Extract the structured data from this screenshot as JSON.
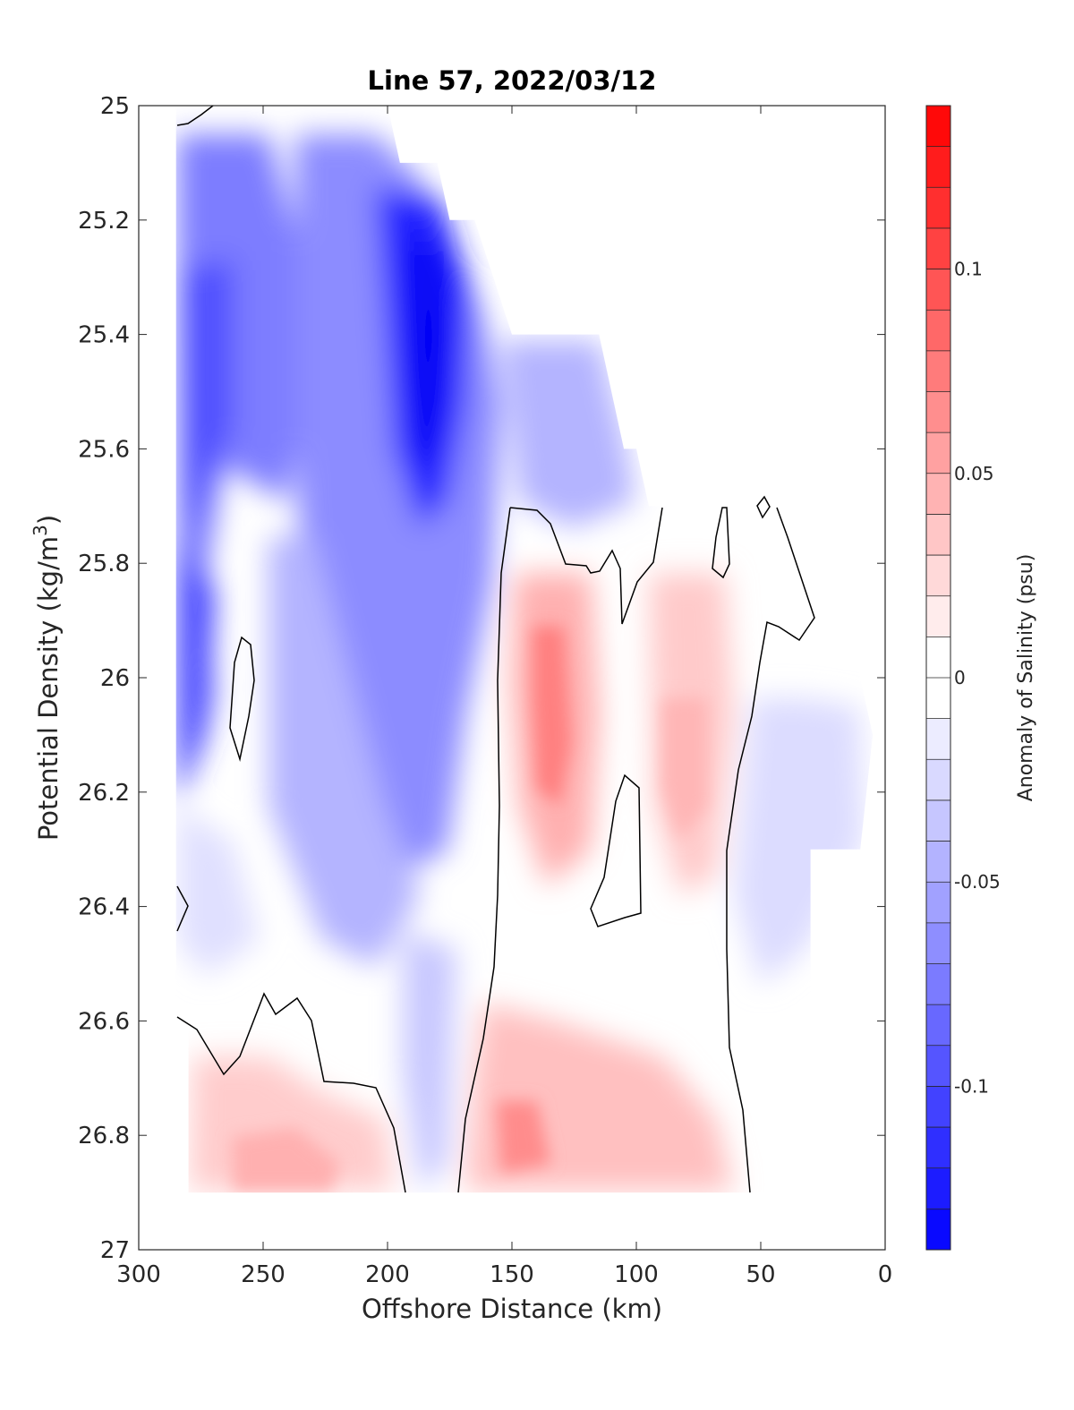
{
  "chart_data": {
    "type": "contour",
    "title": "Line 57, 2022/03/12",
    "xlabel": "Offshore Distance (km)",
    "ylabel_main": "Potential Density (kg/m",
    "ylabel_sup": "3",
    "ylabel_tail": ")",
    "xlim": [
      300,
      0
    ],
    "x_reversed": true,
    "ylim": [
      25,
      27
    ],
    "y_reversed": true,
    "x_ticks": [
      300,
      250,
      200,
      150,
      100,
      50,
      0
    ],
    "x_tick_labels": [
      "300",
      "250",
      "200",
      "150",
      "100",
      "50",
      "0"
    ],
    "y_ticks": [
      25,
      25.2,
      25.4,
      25.6,
      25.8,
      26,
      26.2,
      26.4,
      26.6,
      26.8,
      27
    ],
    "y_tick_labels": [
      "25",
      "25.2",
      "25.4",
      "25.6",
      "25.8",
      "26",
      "26.2",
      "26.4",
      "26.6",
      "26.8",
      "27"
    ],
    "colorbar": {
      "label": "Anomaly of Salinity (psu)",
      "range": [
        -0.14,
        0.14
      ],
      "levels": 28,
      "ticks": [
        0.1,
        0.05,
        0,
        -0.05,
        -0.1
      ],
      "tick_labels": [
        "0.1",
        "0.05",
        "0",
        "-0.05",
        "-0.1"
      ],
      "color_neg": "#0000ff",
      "color_zero": "#ffffff",
      "color_pos": "#ff0000"
    },
    "data_top_boundary": [
      {
        "x": 285,
        "y": 25.0
      },
      {
        "x": 200,
        "y": 25.0
      },
      {
        "x": 195,
        "y": 25.1
      },
      {
        "x": 180,
        "y": 25.1
      },
      {
        "x": 175,
        "y": 25.2
      },
      {
        "x": 165,
        "y": 25.2
      },
      {
        "x": 150,
        "y": 25.4
      },
      {
        "x": 115,
        "y": 25.4
      },
      {
        "x": 105,
        "y": 25.6
      },
      {
        "x": 100,
        "y": 25.6
      },
      {
        "x": 95,
        "y": 25.7
      },
      {
        "x": 30,
        "y": 25.7
      },
      {
        "x": 10,
        "y": 26.0
      },
      {
        "x": 5,
        "y": 26.1
      },
      {
        "x": 10,
        "y": 26.3
      }
    ],
    "features": [
      {
        "name": "fresh core (offshore upper)",
        "x": 185,
        "y": 25.45,
        "value": -0.13
      },
      {
        "name": "fresh core (far offshore)",
        "x": 265,
        "y": 25.55,
        "value": -0.09
      },
      {
        "name": "fresh tongue",
        "x": 220,
        "y": 25.9,
        "value": -0.07
      },
      {
        "name": "salty core (mid)",
        "x": 135,
        "y": 26.1,
        "value": 0.07
      },
      {
        "name": "salty core (deep)",
        "x": 140,
        "y": 26.82,
        "value": 0.06
      },
      {
        "name": "salty band",
        "x": 80,
        "y": 26.15,
        "value": 0.04
      },
      {
        "name": "salty deep offshore",
        "x": 240,
        "y": 26.85,
        "value": 0.035
      },
      {
        "name": "fresh nearshore",
        "x": 45,
        "y": 26.25,
        "value": -0.03
      }
    ]
  }
}
